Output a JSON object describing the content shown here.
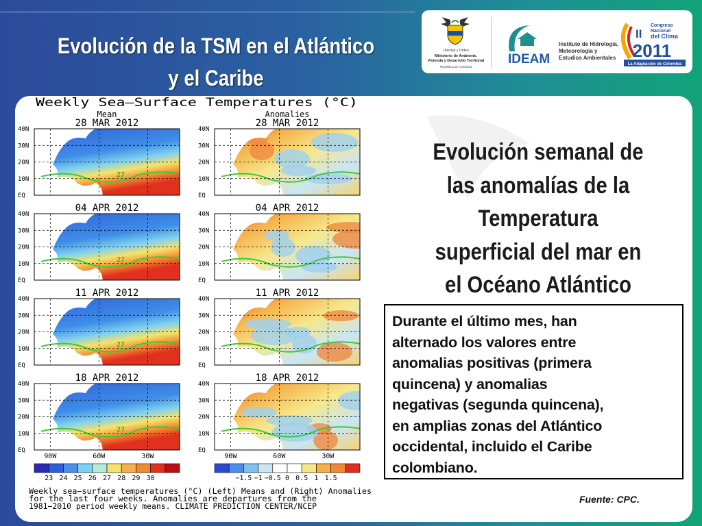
{
  "header": {
    "title": [
      "Evolución de la TSM en el Atlántico",
      "y el Caribe"
    ]
  },
  "logos": {
    "ministry": [
      "Libertad y Orden",
      "Ministerio de Ambiente,",
      "Vivienda y Desarrollo Territorial",
      "República de Colombia"
    ],
    "ideam": {
      "name": "IDEAM",
      "full": [
        "Instituto de Hidrología,",
        "Meteorología y",
        "Estudios Ambientales"
      ]
    },
    "congress": {
      "top": [
        "Congreso",
        "Nacional",
        "del Clima"
      ],
      "numeral": "II",
      "year": "2011",
      "tagline": "La Adaptación de Colombia"
    }
  },
  "figure": {
    "title": "Weekly Sea–Surface Temperatures (°C)",
    "columns": [
      "Mean",
      "Anomalies"
    ],
    "dates": [
      "28 MAR 2012",
      "04 APR 2012",
      "11 APR 2012",
      "18 APR 2012"
    ],
    "lat_labels": [
      "40N",
      "30N",
      "20N",
      "10N",
      "EQ"
    ],
    "lon_labels": [
      "90W",
      "60W",
      "30W"
    ],
    "contour_label": "27",
    "mean_scale": [
      "23",
      "24",
      "25",
      "26",
      "27",
      "28",
      "29",
      "30"
    ],
    "anomaly_scale": [
      "−1.5",
      "−1",
      "−0.5",
      "0",
      "0.5",
      "1",
      "1.5"
    ],
    "caption": [
      "Weekly sea−surface temperatures (°C) (Left) Means and (Right) Anomalies",
      "for the last four weeks. Anomalies are departures from the",
      "1981−2010 period weekly means. CLIMATE PREDICTION CENTER/NCEP"
    ]
  },
  "heading": [
    "Evolución semanal de",
    "las anomalías de la",
    "Temperatura",
    "superficial del mar en",
    "el Océano Atlántico"
  ],
  "box": [
    "Durante el último mes, han",
    "alternado los valores entre",
    "anomalias positivas (primera",
    "quincena) y anomalias",
    "negativas (segunda quincena),",
    "en amplias zonas del Atlántico",
    "occidental, incluido el Caribe",
    "colombiano."
  ],
  "source": "Fuente: CPC."
}
